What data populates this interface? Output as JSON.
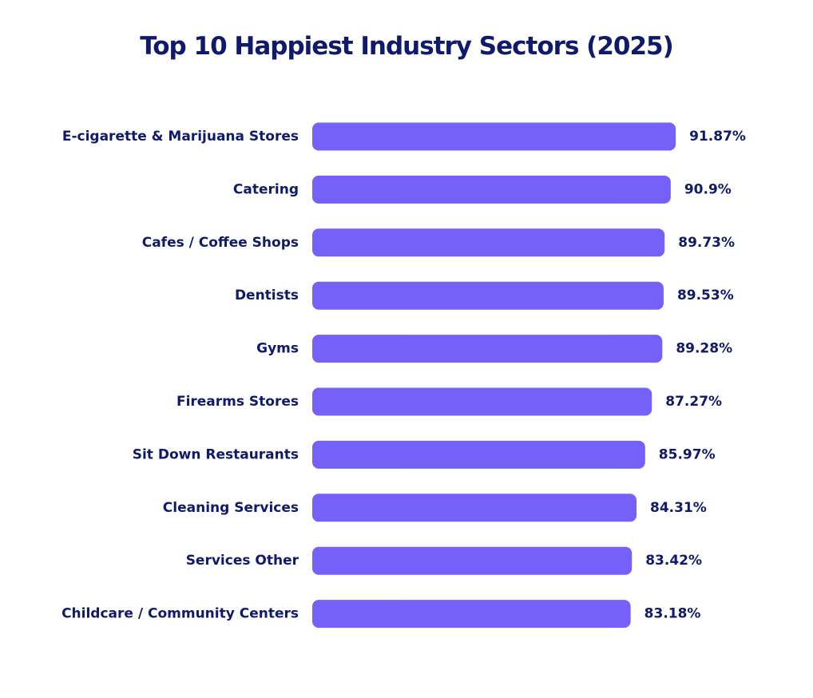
{
  "chart_data": {
    "type": "bar",
    "orientation": "horizontal",
    "title": "Top 10 Happiest Industry Sectors (2025)",
    "categories": [
      "E-cigarette & Marijuana Stores",
      "Catering",
      "Cafes / Coffee Shops",
      "Dentists",
      "Gyms",
      "Firearms Stores",
      "Sit Down Restaurants",
      "Cleaning Services",
      "Services Other",
      "Childcare / Community Centers"
    ],
    "values": [
      91.87,
      90.9,
      89.73,
      89.53,
      89.28,
      87.27,
      85.97,
      84.31,
      83.42,
      83.18
    ],
    "value_labels": [
      "91.87%",
      "90.9%",
      "89.73%",
      "89.53%",
      "89.28%",
      "87.27%",
      "85.97%",
      "84.31%",
      "83.42%",
      "83.18%"
    ],
    "bar_color": "#7661f8",
    "text_color": "#0f1a6b",
    "grid": false,
    "legend": "none"
  }
}
